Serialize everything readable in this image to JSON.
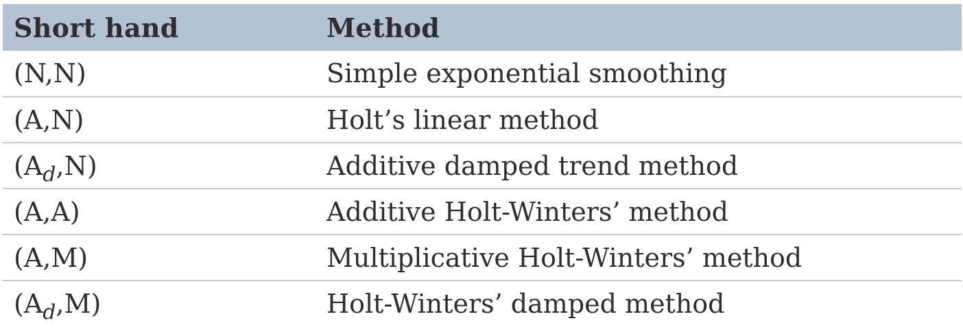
{
  "table": {
    "headers": [
      "Short hand",
      "Method"
    ],
    "rows": [
      {
        "short_main": "(N,N)",
        "short_sub": "",
        "short_tail": "",
        "method": "Simple exponential smoothing"
      },
      {
        "short_main": "(A,N)",
        "short_sub": "",
        "short_tail": "",
        "method": "Holt’s linear method"
      },
      {
        "short_main": "(A",
        "short_sub": "d",
        "short_tail": ",N)",
        "method": "Additive damped trend method"
      },
      {
        "short_main": "(A,A)",
        "short_sub": "",
        "short_tail": "",
        "method": "Additive Holt-Winters’ method"
      },
      {
        "short_main": "(A,M)",
        "short_sub": "",
        "short_tail": "",
        "method": "Multiplicative Holt-Winters’ method"
      },
      {
        "short_main": "(A",
        "short_sub": "d",
        "short_tail": ",M)",
        "method": "Holt-Winters’ damped method"
      }
    ]
  }
}
